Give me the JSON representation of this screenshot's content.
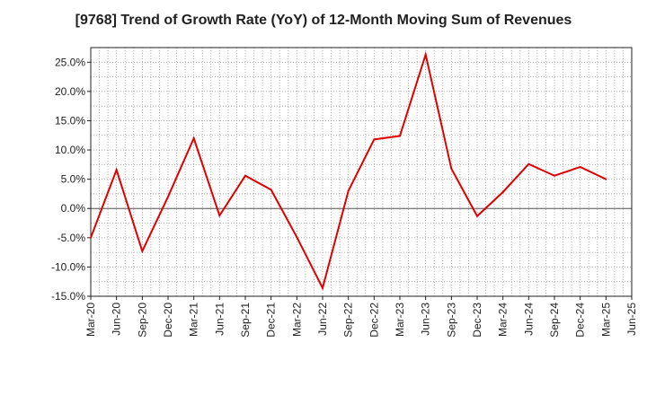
{
  "chart_data": {
    "type": "line",
    "title": "[9768]  Trend of Growth Rate (YoY) of 12-Month Moving Sum of Revenues",
    "xlabel": "",
    "ylabel": "",
    "x_tick_labels": [
      "Mar-20",
      "Jun-20",
      "Sep-20",
      "Dec-20",
      "Mar-21",
      "Jun-21",
      "Sep-21",
      "Dec-21",
      "Mar-22",
      "Jun-22",
      "Sep-22",
      "Dec-22",
      "Mar-23",
      "Jun-23",
      "Sep-23",
      "Dec-23",
      "Mar-24",
      "Jun-24",
      "Sep-24",
      "Dec-24",
      "Mar-25",
      "Jun-25"
    ],
    "y_tick_labels": [
      "25.0%",
      "20.0%",
      "15.0%",
      "10.0%",
      "5.0%",
      "0.0%",
      "-5.0%",
      "-10.0%",
      "-15.0%"
    ],
    "y_ticks": [
      25,
      20,
      15,
      10,
      5,
      0,
      -5,
      -10,
      -15
    ],
    "ylim": [
      -15,
      27.5
    ],
    "grid": true,
    "series": [
      {
        "color": "#e00000",
        "values": [
          -5.0,
          6.6,
          -7.3,
          2.0,
          12.0,
          -1.2,
          5.6,
          3.2,
          -4.9,
          -13.6,
          3.0,
          11.8,
          12.4,
          26.3,
          6.8,
          -1.3,
          2.8,
          7.6,
          5.6,
          7.1,
          5.0,
          null
        ]
      }
    ]
  }
}
